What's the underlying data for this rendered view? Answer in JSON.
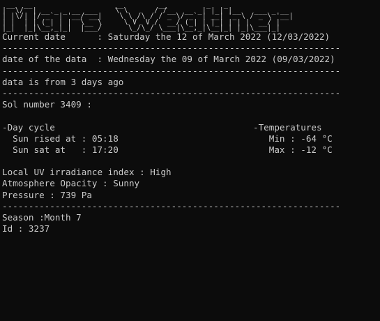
{
  "banner": [
    " __  __                   __        __         _   _               ",
    "|  \\/  | __ _ _ __ ___    \\ \\      / /__  __ _| |_| |__   ___ _ __ ",
    "| |\\/| |/ _` | '__/ __|    \\ \\ /\\ / / _ \\/ _` | __| '_ \\ / _ \\ '__|",
    "| |  | | (_| | |  \\__ \\     \\ V  V /  __/ (_| | |_| | | |  __/ |   ",
    "|_|  |_|\\__,_|_|  |___/      \\_/\\_/ \\___|\\__,_|\\__|_| |_|\\___|_|   "
  ],
  "banner_text": "Mars Weather",
  "current_date": "Current date      : Saturday the 12 of March 2022 (12/03/2022)",
  "separator": "----------------------------------------------------------------",
  "data_date": "date of the data  : Wednesday the 09 of March 2022 (09/03/2022)",
  "data_age": "data is from 3 days ago",
  "sol": "Sol number 3409 :",
  "day_cycle": {
    "title": "-Day cycle",
    "sunrise": "  Sun rised at : 05:18",
    "sunset": "  Sun sat at   : 17:20"
  },
  "temperatures": {
    "title": "-Temperatures",
    "min": "   Min : -64 °C",
    "max": "   Max : -12 °C"
  },
  "uv": "Local UV irradiance index : High",
  "opacity": "Atmosphere Opacity : Sunny",
  "pressure": "Pressure : 739 Pa",
  "season": "Season :Month 7",
  "id": "Id : 3237"
}
